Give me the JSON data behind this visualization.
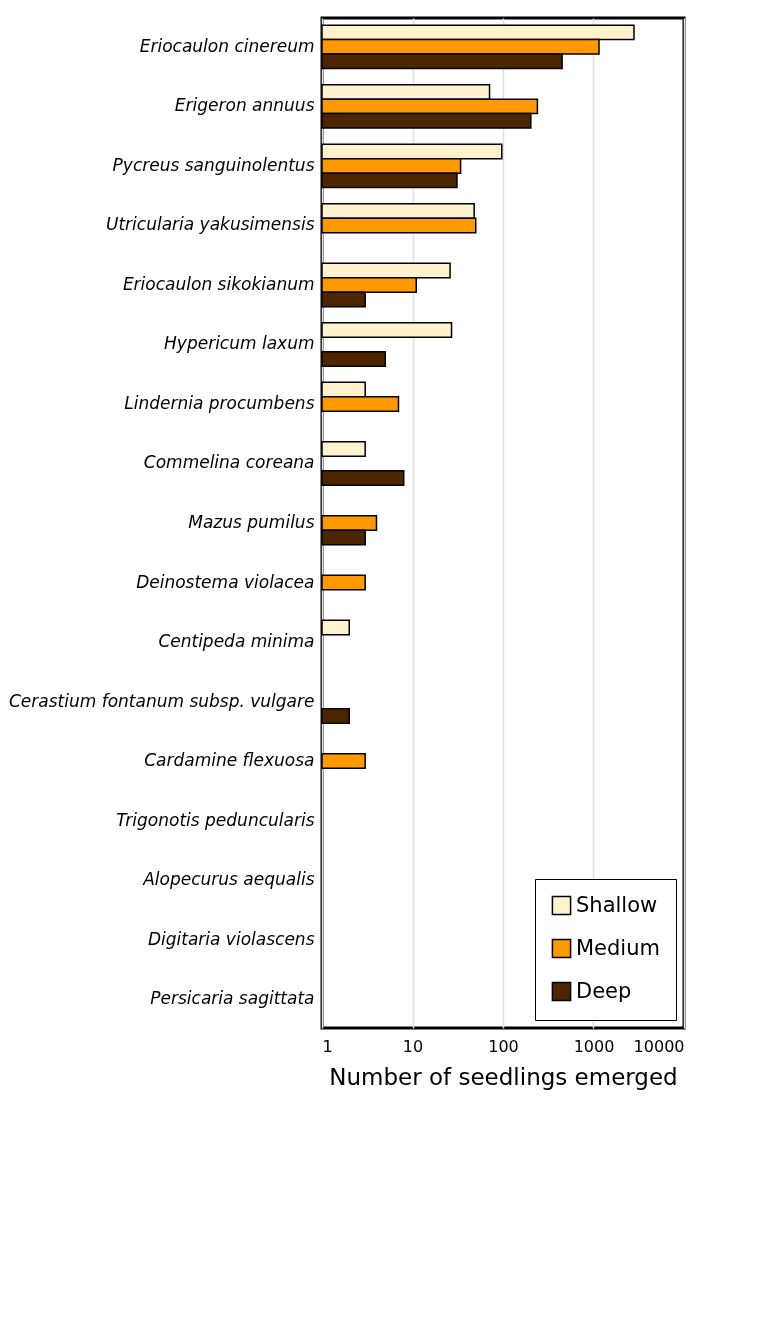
{
  "chart_data": {
    "type": "bar",
    "orientation": "horizontal",
    "xlabel": "Number of seedlings emerged",
    "log": "x",
    "xlim": [
      1,
      10000
    ],
    "xticks": [
      1,
      10,
      100,
      1000,
      10000
    ],
    "grid": "x",
    "legend": "bottom right",
    "categories": [
      "Eriocaulon cinereum",
      "Erigeron annuus",
      "Pycreus sanguinolentus",
      "Utricularia yakusimensis",
      "Eriocaulon sikokianum",
      "Hypericum laxum",
      "Lindernia procumbens",
      "Commelina coreana",
      "Mazus pumilus",
      "Deinostema violacea",
      "Centipeda minima",
      "Cerastium fontanum subsp. vulgare",
      "Cardamine flexuosa",
      "Trigonotis peduncularis",
      "Alopecurus aequalis",
      "Digitaria violascens",
      "Persicaria sagittata"
    ],
    "series": [
      {
        "name": "Shallow",
        "color": "#fff2cc",
        "values": [
          2800,
          71,
          97,
          48,
          26,
          27,
          3,
          3,
          null,
          null,
          2,
          null,
          null,
          null,
          null,
          null,
          null
        ]
      },
      {
        "name": "Medium",
        "color": "#ff9900",
        "values": [
          1150,
          240,
          34,
          50,
          11,
          null,
          7,
          null,
          4,
          3,
          null,
          null,
          3,
          null,
          null,
          null,
          null
        ]
      },
      {
        "name": "Deep",
        "color": "#4d2600",
        "values": [
          450,
          203,
          31,
          null,
          3,
          5,
          null,
          8,
          3,
          null,
          null,
          2,
          null,
          null,
          null,
          null,
          null
        ]
      }
    ]
  }
}
